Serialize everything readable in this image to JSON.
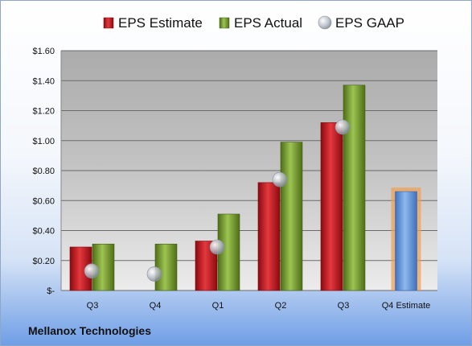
{
  "company": "Mellanox Technologies",
  "chart_data": {
    "type": "bar",
    "categories": [
      "Q3",
      "Q4",
      "Q1",
      "Q2",
      "Q3",
      "Q4 Estimate"
    ],
    "series": [
      {
        "name": "EPS Estimate",
        "color": "#c8141b",
        "values": [
          0.29,
          null,
          0.33,
          0.72,
          1.12,
          null
        ]
      },
      {
        "name": "EPS Actual",
        "color": "#7ea32b",
        "values": [
          0.31,
          0.31,
          0.51,
          0.99,
          1.37,
          null
        ]
      },
      {
        "name": "EPS GAAP",
        "color": "#a9b1bd",
        "values": [
          0.13,
          0.11,
          0.29,
          0.74,
          1.09,
          null
        ]
      }
    ],
    "forecast": {
      "category": "Q4 Estimate",
      "value": 0.66,
      "color": "#6a9ae0",
      "highlight": "#f0a050"
    },
    "ylim": [
      0,
      1.6
    ],
    "yticks": [
      0,
      0.2,
      0.4,
      0.6,
      0.8,
      1.0,
      1.2,
      1.4,
      1.6
    ],
    "ytick_labels": [
      "$-",
      "$0.20",
      "$0.40",
      "$0.60",
      "$0.80",
      "$1.00",
      "$1.20",
      "$1.40",
      "$1.60"
    ],
    "grid": true,
    "legend_position": "top"
  }
}
